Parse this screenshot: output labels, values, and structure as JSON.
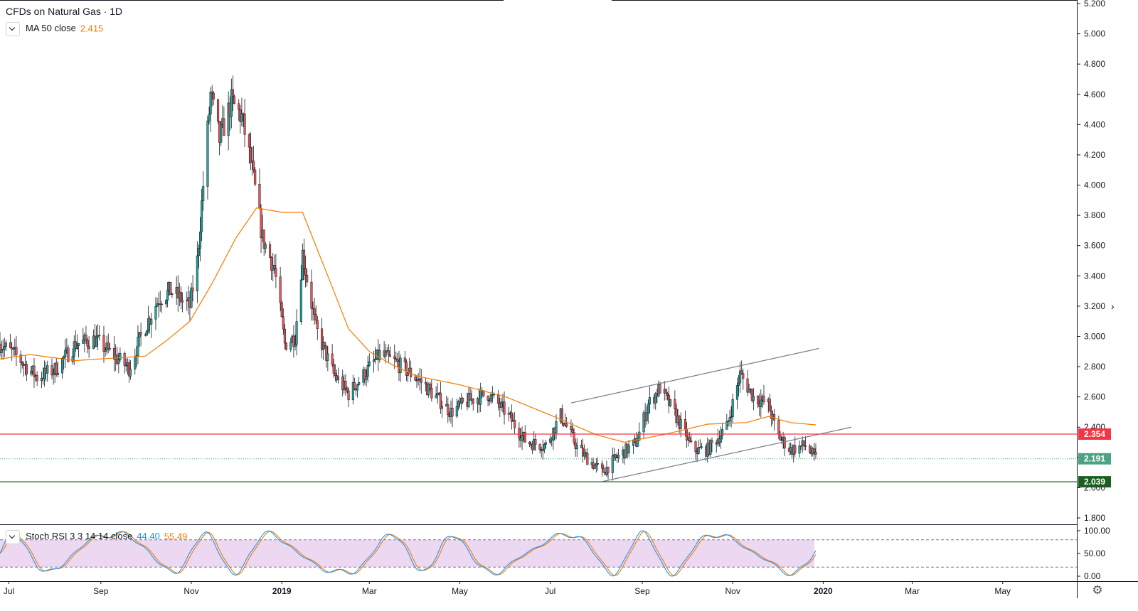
{
  "legend": {
    "title": "CFDs on Natural Gas · 1D",
    "ma_label": "MA 50 close",
    "ma_value": "2.415",
    "stoch_label": "Stoch RSI 3 3 14 14 close",
    "stoch_k": "44.40",
    "stoch_d": "55.49"
  },
  "colors": {
    "up": "#26a69a",
    "down": "#ef5350",
    "ma": "#f57c00",
    "resistance": "#f23645",
    "support": "#1b5e20",
    "last_price": "#4ba382",
    "stoch_k": "#2196f3",
    "stoch_d": "#f57c00",
    "stoch_band": "#e1bee7"
  },
  "chart_data": [
    {
      "type": "candlestick",
      "symbol": "CFDs on Natural Gas",
      "interval": "1D",
      "y_ticks": [
        "1.800",
        "2.000",
        "2.200",
        "2.400",
        "2.600",
        "2.800",
        "3.000",
        "3.200",
        "3.400",
        "3.600",
        "3.800",
        "4.000",
        "4.200",
        "4.400",
        "4.600",
        "4.800",
        "5.000",
        "5.200"
      ],
      "ylim": [
        1.8,
        5.2
      ],
      "x_ticks": [
        "Jul",
        "Sep",
        "Nov",
        "2019",
        "Mar",
        "May",
        "Jul",
        "Sep",
        "Nov",
        "2020",
        "Mar",
        "May"
      ],
      "x_range": [
        "2018-06-25",
        "2020-06-20"
      ],
      "price_path": [
        [
          "2018-06-25",
          2.95
        ],
        [
          "2018-07-05",
          2.88
        ],
        [
          "2018-07-20",
          2.73
        ],
        [
          "2018-08-01",
          2.78
        ],
        [
          "2018-08-15",
          2.95
        ],
        [
          "2018-08-28",
          2.98
        ],
        [
          "2018-09-10",
          2.87
        ],
        [
          "2018-09-20",
          2.79
        ],
        [
          "2018-09-28",
          3.0
        ],
        [
          "2018-10-10",
          3.25
        ],
        [
          "2018-10-18",
          3.3
        ],
        [
          "2018-10-31",
          3.2
        ],
        [
          "2018-11-05",
          3.5
        ],
        [
          "2018-11-09",
          4.0
        ],
        [
          "2018-11-14",
          4.6
        ],
        [
          "2018-11-20",
          4.3
        ],
        [
          "2018-11-28",
          4.55
        ],
        [
          "2018-12-05",
          4.45
        ],
        [
          "2018-12-12",
          4.1
        ],
        [
          "2018-12-19",
          3.65
        ],
        [
          "2018-12-27",
          3.45
        ],
        [
          "2019-01-03",
          2.95
        ],
        [
          "2019-01-10",
          3.0
        ],
        [
          "2019-01-15",
          3.55
        ],
        [
          "2019-01-24",
          3.05
        ],
        [
          "2019-02-05",
          2.75
        ],
        [
          "2019-02-15",
          2.62
        ],
        [
          "2019-02-28",
          2.78
        ],
        [
          "2019-03-08",
          2.88
        ],
        [
          "2019-03-20",
          2.82
        ],
        [
          "2019-04-05",
          2.7
        ],
        [
          "2019-04-25",
          2.5
        ],
        [
          "2019-05-08",
          2.58
        ],
        [
          "2019-05-20",
          2.62
        ],
        [
          "2019-06-01",
          2.5
        ],
        [
          "2019-06-15",
          2.3
        ],
        [
          "2019-06-28",
          2.28
        ],
        [
          "2019-07-08",
          2.48
        ],
        [
          "2019-07-20",
          2.25
        ],
        [
          "2019-08-05",
          2.1
        ],
        [
          "2019-08-15",
          2.2
        ],
        [
          "2019-08-28",
          2.3
        ],
        [
          "2019-09-05",
          2.55
        ],
        [
          "2019-09-13",
          2.66
        ],
        [
          "2019-09-25",
          2.45
        ],
        [
          "2019-10-05",
          2.25
        ],
        [
          "2019-10-15",
          2.25
        ],
        [
          "2019-10-28",
          2.4
        ],
        [
          "2019-11-06",
          2.75
        ],
        [
          "2019-11-15",
          2.6
        ],
        [
          "2019-11-25",
          2.55
        ],
        [
          "2019-12-01",
          2.35
        ],
        [
          "2019-12-10",
          2.25
        ],
        [
          "2019-12-20",
          2.28
        ],
        [
          "2019-12-27",
          2.19
        ]
      ],
      "ma50": {
        "name": "MA 50 close",
        "last": 2.415,
        "path": [
          [
            "2018-06-25",
            2.85
          ],
          [
            "2018-07-15",
            2.88
          ],
          [
            "2018-08-15",
            2.84
          ],
          [
            "2018-09-15",
            2.86
          ],
          [
            "2018-10-01",
            2.87
          ],
          [
            "2018-10-15",
            2.97
          ],
          [
            "2018-10-31",
            3.1
          ],
          [
            "2018-11-15",
            3.35
          ],
          [
            "2018-12-01",
            3.65
          ],
          [
            "2018-12-15",
            3.85
          ],
          [
            "2019-01-01",
            3.82
          ],
          [
            "2019-01-15",
            3.82
          ],
          [
            "2019-02-01",
            3.4
          ],
          [
            "2019-02-15",
            3.05
          ],
          [
            "2019-03-01",
            2.9
          ],
          [
            "2019-03-15",
            2.82
          ],
          [
            "2019-04-01",
            2.74
          ],
          [
            "2019-05-01",
            2.68
          ],
          [
            "2019-06-01",
            2.6
          ],
          [
            "2019-07-01",
            2.48
          ],
          [
            "2019-08-01",
            2.35
          ],
          [
            "2019-08-20",
            2.3
          ],
          [
            "2019-09-15",
            2.35
          ],
          [
            "2019-10-15",
            2.42
          ],
          [
            "2019-11-10",
            2.43
          ],
          [
            "2019-11-25",
            2.47
          ],
          [
            "2019-12-10",
            2.43
          ],
          [
            "2019-12-27",
            2.415
          ]
        ]
      },
      "resistance_level": 2.354,
      "support_level": 2.039,
      "last_price": 2.191,
      "price_labels": [
        "2.354",
        "2.191",
        "2.039"
      ],
      "trendlines": [
        {
          "from": [
            "2019-07-15",
            2.56
          ],
          "to": [
            "2019-12-29",
            2.92
          ]
        },
        {
          "from": [
            "2019-08-05",
            2.04
          ],
          "to": [
            "2020-01-20",
            2.4
          ]
        }
      ]
    },
    {
      "type": "line",
      "name": "Stoch RSI 3 3 14 14 close",
      "y_ticks": [
        "0.00",
        "50.00",
        "100.00"
      ],
      "ylim": [
        0,
        100
      ],
      "bands": [
        20,
        80
      ],
      "series": [
        {
          "name": "K",
          "last": 44.4
        },
        {
          "name": "D",
          "last": 55.49
        }
      ]
    }
  ]
}
